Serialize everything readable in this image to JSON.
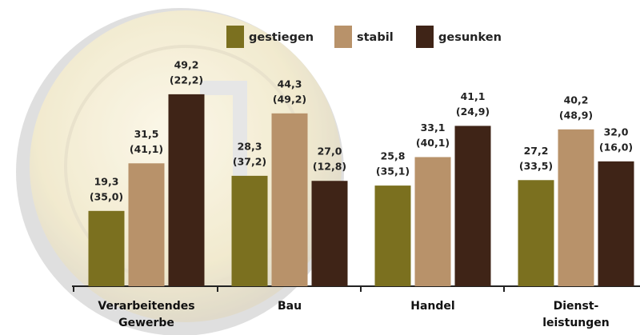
{
  "chart_data": {
    "type": "bar",
    "categories": [
      "Verarbeitendes\nGewerbe",
      "Bau",
      "Handel",
      "Dienst-\nleistungen"
    ],
    "series": [
      {
        "name": "gestiegen",
        "color": "#7b701f",
        "values": [
          19.3,
          28.3,
          25.8,
          27.2
        ],
        "value_labels": [
          "19,3",
          "28,3",
          "25,8",
          "27,2"
        ],
        "previous_labels": [
          "(35,0)",
          "(37,2)",
          "(35,1)",
          "(33,5)"
        ]
      },
      {
        "name": "stabil",
        "color": "#b8926a",
        "values": [
          31.5,
          44.3,
          33.1,
          40.2
        ],
        "value_labels": [
          "31,5",
          "44,3",
          "33,1",
          "40,2"
        ],
        "previous_labels": [
          "(41,1)",
          "(49,2)",
          "(40,1)",
          "(48,9)"
        ]
      },
      {
        "name": "gesunken",
        "color": "#3f2417",
        "values": [
          49.2,
          27.0,
          41.1,
          32.0
        ],
        "value_labels": [
          "49,2",
          "27,0",
          "41,1",
          "32,0"
        ],
        "previous_labels": [
          "(22,2)",
          "(12,8)",
          "(24,9)",
          "(16,0)"
        ]
      }
    ],
    "legend": "top"
  }
}
